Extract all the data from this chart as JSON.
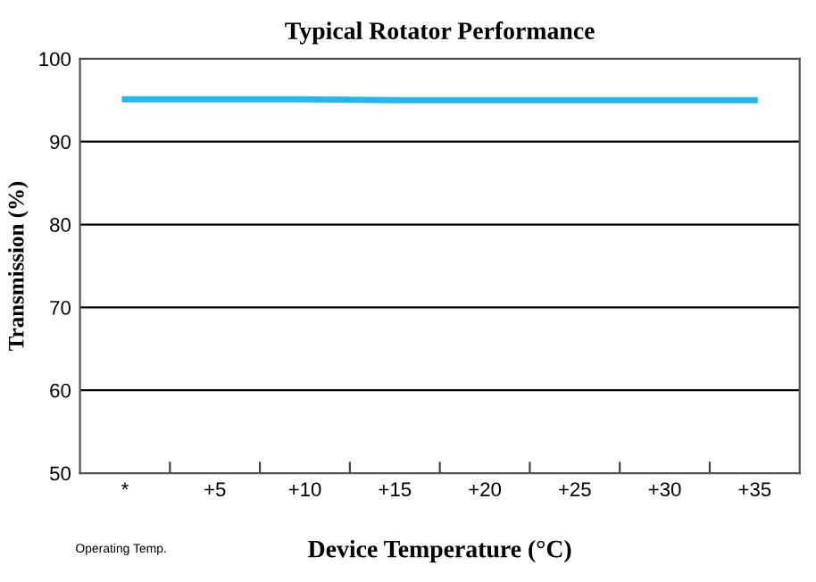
{
  "chart_data": {
    "type": "line",
    "title": "Typical Rotator Performance",
    "xlabel": "Device Temperature (°C)",
    "ylabel": "Transmission (%)",
    "categories": [
      "*",
      "+5",
      "+10",
      "+15",
      "+20",
      "+25",
      "+30",
      "+35"
    ],
    "series": [
      {
        "color": "#29b6e6",
        "values": [
          95.1,
          95.1,
          95.1,
          95.0,
          95.0,
          95.0,
          95.0,
          95.0
        ]
      }
    ],
    "ylim": [
      50,
      100
    ],
    "yticks": [
      50,
      60,
      70,
      80,
      90,
      100
    ],
    "grid": "y",
    "legend": false,
    "marker": "none",
    "line_style": "solid",
    "annotations": [
      "Operating Temp."
    ]
  }
}
